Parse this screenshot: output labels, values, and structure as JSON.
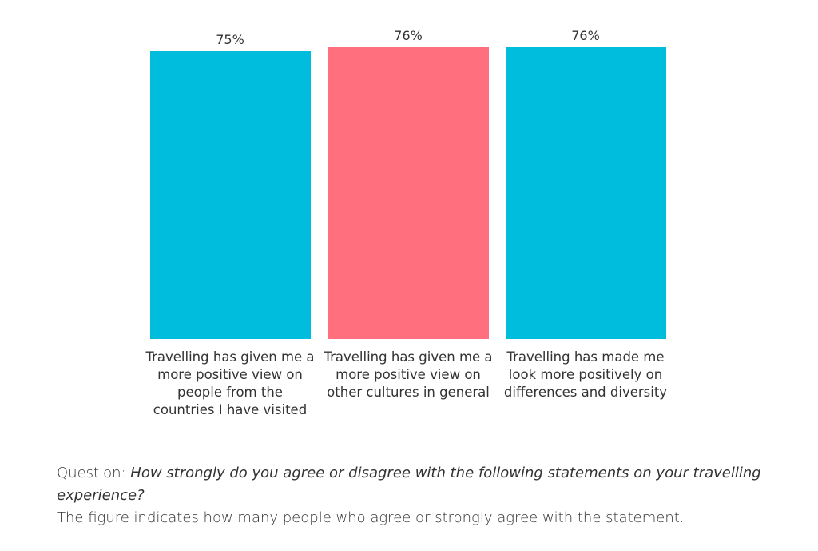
{
  "chart_data": {
    "type": "bar",
    "categories": [
      "Travelling has given me a more positive view on people from the countries I have visited",
      "Travelling has given me a more positive view on other cultures in general",
      "Travelling has made me look more positively on differences and diversity"
    ],
    "category_label_lines": [
      "Travelling has given me a\nmore positive view on\npeople from the\ncountries I have visited",
      "Travelling has given me a\nmore positive view on\nother cultures in general",
      "Travelling has made me\nlook more positively on\ndifferences and diversity"
    ],
    "values": [
      75,
      76,
      76
    ],
    "value_labels": [
      "75%",
      "76%",
      "76%"
    ],
    "colors": [
      "#00BCDD",
      "#FF6F7E",
      "#00BCDD"
    ],
    "ylim": [
      0,
      76
    ],
    "grid": false,
    "title": "",
    "xlabel": "",
    "ylabel": ""
  },
  "caption": {
    "question_prefix": "Question: ",
    "question_text": "How strongly do you agree or disagree with the following statements on your travelling experience?",
    "note": "The figure indicates how many people who agree or strongly agree with the statement."
  }
}
